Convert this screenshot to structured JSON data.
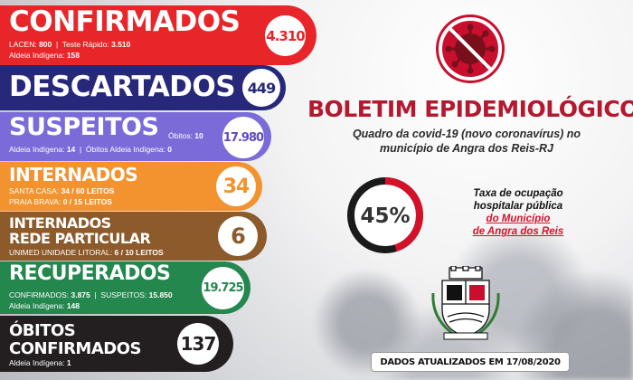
{
  "confirmados": {
    "title": "CONFIRMADOS",
    "value": "4.310",
    "line1_lacen_label": "LACEN: ",
    "line1_lacen_value": "800",
    "line1_teste_label": "  |  Teste Rápido: ",
    "line1_teste_value": "3.510",
    "line2_label": "Aldeia Indígena: ",
    "line2_value": "158",
    "color": "#e8262a"
  },
  "descartados": {
    "title": "DESCARTADOS",
    "value": "449",
    "color": "#27287a"
  },
  "suspeitos": {
    "title": "SUSPEITOS",
    "obitos_label": "Óbitos: ",
    "obitos_value": "10",
    "value": "17.980",
    "line2_label": "Aldeia Indígena: ",
    "line2_value": "14",
    "line2_sep": "  |  Óbitos Aldeia Indígena: ",
    "line2_value2": "0",
    "color": "#7a6bd8"
  },
  "internados": {
    "title": "INTERNADOS",
    "value": "34",
    "line1_label": "SANTA CASA: ",
    "line1_value": "34 / 60 LEITOS",
    "line2_label": "PRAIA BRAVA: ",
    "line2_value": "0 / 15 LEITOS",
    "color": "#f2932f"
  },
  "rede_particular": {
    "title_line1": "INTERNADOS",
    "title_line2": "REDE PARTICULAR",
    "value": "6",
    "line1_label": "UNIMED UNIDADE LITORAL: ",
    "line1_value": "6 / 10 LEITOS",
    "color": "#8c5a2b"
  },
  "recuperados": {
    "title": "RECUPERADOS",
    "value": "19.725",
    "line1_label": "CONFIRMADOS: ",
    "line1_value": "3.875",
    "line1_sep": "  |  SUSPEITOS: ",
    "line1_value2": "15.850",
    "line2_label": "Aldeia Indígena: ",
    "line2_value": "148",
    "color": "#23874e"
  },
  "obitos": {
    "title_line1": "ÓBITOS",
    "title_line2": "CONFIRMADOS",
    "value": "137",
    "line1_label": "Aldeia Indígena: ",
    "line1_value": "1",
    "color": "#231f20"
  },
  "headline": "BOLETIM EPIDEMIOLÓGICO",
  "subheadline_line1": "Quadro da covid-19 (novo coronavírus) no",
  "subheadline_line2": "município de Angra dos Reis-RJ",
  "occupancy": {
    "percent_label": "45%",
    "fraction": 0.45,
    "text_line1": "Taxa de ocupação",
    "text_line2": "hospitalar pública",
    "text_line3": "do Município",
    "text_line4": "de Angra dos Reis",
    "accent": "#d3122a"
  },
  "updated_label": "DADOS ATUALIZADOS EM 17/08/2020",
  "icons": {
    "top": "no-coronavirus-icon",
    "crest": "city-crest-icon"
  }
}
